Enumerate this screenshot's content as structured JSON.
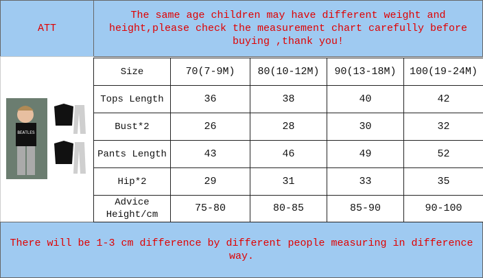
{
  "header": {
    "label": "ATT",
    "notice": "The same age children may have different weight and height,please check the measurement chart carefully before buying ,thank you!"
  },
  "table": {
    "rows": [
      [
        "Size",
        "70(7-9M)",
        "80(10-12M)",
        "90(13-18M)",
        "100(19-24M)"
      ],
      [
        "Tops Length",
        "36",
        "38",
        "40",
        "42"
      ],
      [
        "Bust*2",
        "26",
        "28",
        "30",
        "32"
      ],
      [
        "Pants Length",
        "43",
        "46",
        "49",
        "52"
      ],
      [
        "Hip*2",
        "29",
        "31",
        "33",
        "35"
      ],
      [
        "Advice Height/cm",
        "75-80",
        "80-85",
        "85-90",
        "90-100"
      ]
    ]
  },
  "footer": {
    "note": "There will be 1-3 cm difference by different people measuring in difference way."
  }
}
